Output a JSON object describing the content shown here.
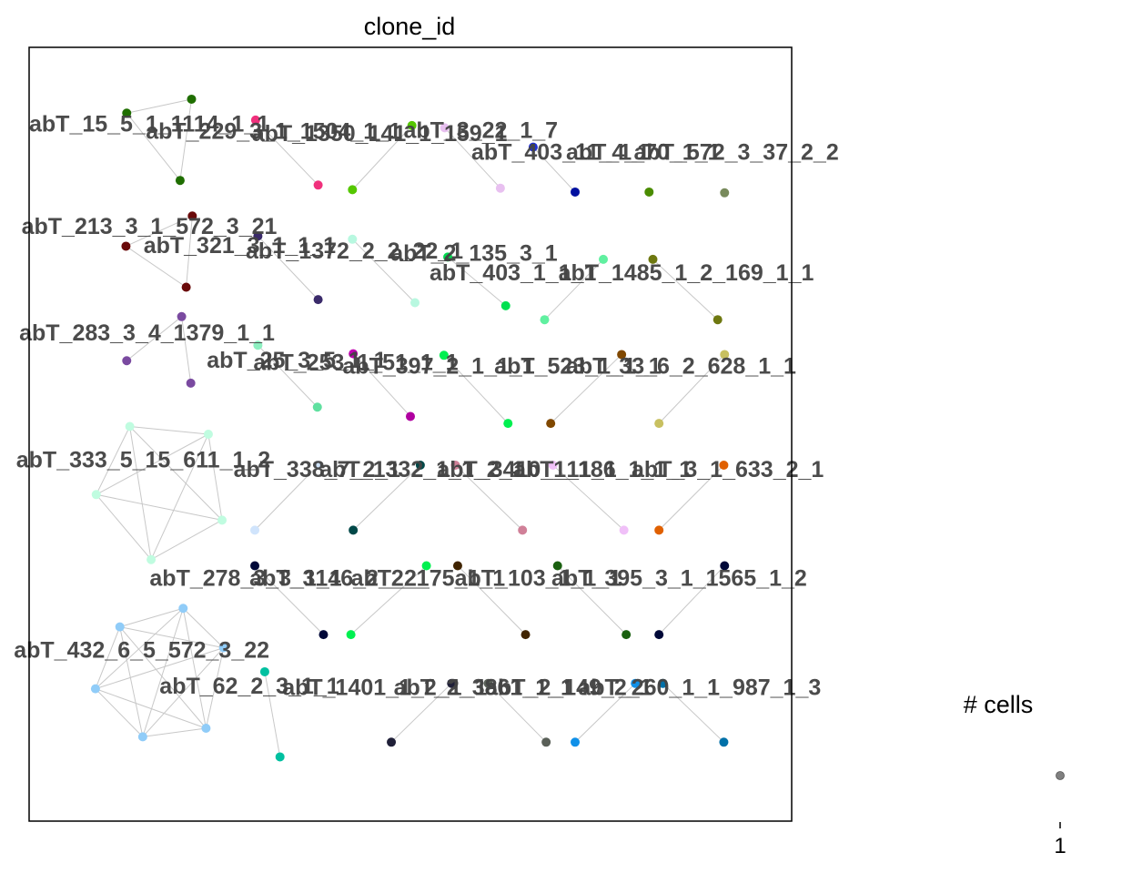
{
  "chart_data": {
    "type": "scatter",
    "title": "clone_id",
    "xlim": [
      0,
      100
    ],
    "ylim": [
      0,
      100
    ],
    "grid": false,
    "legend": {
      "title": "# cells",
      "ticks": [
        "1"
      ],
      "placement": "right"
    },
    "edge_color": "#c8c8c8",
    "clones": [
      {
        "label": "abT_15_5_1_1114_1_1",
        "lx": 0,
        "ly": 89.1,
        "nodes": [
          [
            12.8,
            91.5,
            "#1f6e00"
          ],
          [
            21.3,
            93.3,
            "#1f6e00"
          ],
          [
            19.8,
            82.8,
            "#1f6e00"
          ]
        ],
        "edges": [
          [
            0,
            1
          ],
          [
            0,
            2
          ],
          [
            1,
            2
          ]
        ]
      },
      {
        "label": "abT_229_3_1_1504_1_1",
        "lx": 15.3,
        "ly": 88.2,
        "nodes": [
          [
            29.7,
            90.6,
            "#f0307c"
          ],
          [
            37.9,
            82.2,
            "#f0307c"
          ]
        ],
        "edges": [
          [
            0,
            1
          ]
        ]
      },
      {
        "label": "abT_1350_141_1_159_1",
        "lx": 29.2,
        "ly": 87.9,
        "nodes": [
          [
            50.2,
            89.9,
            "#55c700"
          ],
          [
            42.4,
            81.6,
            "#55c700"
          ]
        ],
        "edges": [
          [
            0,
            1
          ]
        ]
      },
      {
        "label": "abT_3_22_1_7",
        "lx": 49.1,
        "ly": 88.3,
        "nodes": [
          [
            54.5,
            89.6,
            "#e8c0f0"
          ],
          [
            61.8,
            81.8,
            "#e8c0f0"
          ]
        ],
        "edges": [
          [
            0,
            1
          ]
        ]
      },
      {
        "label": "abT_403_11_4_1",
        "lx": 58.0,
        "ly": 85.5,
        "nodes": [
          [
            66.1,
            87.1,
            "#2030d0"
          ],
          [
            71.6,
            81.3,
            "#0010a0"
          ]
        ],
        "edges": [
          [
            0,
            1
          ]
        ]
      },
      {
        "label": "abT_1_70_1_1",
        "lx": 70.4,
        "ly": 85.5,
        "nodes": [
          [
            81.3,
            81.3,
            "#4a8c00"
          ]
        ],
        "edges": []
      },
      {
        "label": "abT_572_3_37_2_2",
        "lx": 79.3,
        "ly": 85.5,
        "nodes": [
          [
            91.2,
            81.2,
            "#788a5c"
          ]
        ],
        "edges": []
      },
      {
        "label": "abT_213_3_1_572_3_21",
        "lx": -1.0,
        "ly": 75.9,
        "nodes": [
          [
            12.7,
            74.3,
            "#6a0a0a"
          ],
          [
            21.4,
            78.2,
            "#6a0a0a"
          ],
          [
            20.6,
            69.0,
            "#6a0a0a"
          ]
        ],
        "edges": [
          [
            0,
            1
          ],
          [
            0,
            2
          ],
          [
            1,
            2
          ]
        ]
      },
      {
        "label": "abT_321_3_1_1_1",
        "lx": 15.0,
        "ly": 73.4,
        "nodes": [
          [
            30.0,
            75.6,
            "#3a2a6a"
          ],
          [
            37.9,
            67.4,
            "#3a2a6a"
          ]
        ],
        "edges": [
          [
            0,
            1
          ]
        ]
      },
      {
        "label": "abT_1372_2_2_22_1",
        "lx": 28.4,
        "ly": 72.7,
        "nodes": [
          [
            42.4,
            75.2,
            "#b8f8e0"
          ],
          [
            50.6,
            67.0,
            "#b8f8e0"
          ]
        ],
        "edges": [
          [
            0,
            1
          ]
        ]
      },
      {
        "label": "abT_2_135_3_1",
        "lx": 47.4,
        "ly": 72.4,
        "nodes": [
          [
            54.9,
            72.9,
            "#00dc50"
          ],
          [
            62.5,
            66.6,
            "#00e050"
          ]
        ],
        "edges": [
          [
            0,
            1
          ]
        ]
      },
      {
        "label": "abT_403_1_1_1",
        "lx": 52.5,
        "ly": 69.9,
        "nodes": [
          [
            75.3,
            72.6,
            "#60f0a0"
          ],
          [
            67.6,
            64.8,
            "#60f0a0"
          ]
        ],
        "edges": [
          [
            0,
            1
          ]
        ]
      },
      {
        "label": "abT_1485_1_2_169_1_1",
        "lx": 69.4,
        "ly": 69.9,
        "nodes": [
          [
            81.8,
            72.6,
            "#6e7810"
          ],
          [
            90.3,
            64.8,
            "#6e7810"
          ]
        ],
        "edges": [
          [
            0,
            1
          ]
        ]
      },
      {
        "label": "abT_283_3_4_1379_1_1",
        "lx": -1.3,
        "ly": 62.1,
        "nodes": [
          [
            20.0,
            65.2,
            "#7a4aa0"
          ],
          [
            12.8,
            59.5,
            "#7a4aa0"
          ],
          [
            21.2,
            56.6,
            "#7a4aa0"
          ]
        ],
        "edges": [
          [
            0,
            1
          ],
          [
            0,
            2
          ]
        ]
      },
      {
        "label": "abT_25_3_5_1_1",
        "lx": 23.3,
        "ly": 58.6,
        "nodes": [
          [
            30.0,
            61.5,
            "#8cf0c0"
          ],
          [
            37.8,
            53.5,
            "#60e0a0"
          ]
        ],
        "edges": [
          [
            0,
            1
          ]
        ]
      },
      {
        "label": "abT_253_1_51_1_1",
        "lx": 29.4,
        "ly": 58.3,
        "nodes": [
          [
            42.5,
            60.4,
            "#c000b0"
          ],
          [
            50.0,
            52.3,
            "#b000a0"
          ]
        ],
        "edges": [
          [
            0,
            1
          ]
        ]
      },
      {
        "label": "abT_397_2_1_1_1",
        "lx": 41.1,
        "ly": 57.8,
        "nodes": [
          [
            54.4,
            60.2,
            "#00f050"
          ],
          [
            62.8,
            51.4,
            "#00f050"
          ]
        ],
        "edges": [
          [
            0,
            1
          ]
        ]
      },
      {
        "label": "abT_523_1_1_1",
        "lx": 61.0,
        "ly": 57.8,
        "nodes": [
          [
            77.7,
            60.3,
            "#804800"
          ],
          [
            68.4,
            51.4,
            "#804800"
          ]
        ],
        "edges": [
          [
            0,
            1
          ]
        ]
      },
      {
        "label": "abT_33_6_2_628_1_1",
        "lx": 70.4,
        "ly": 57.8,
        "nodes": [
          [
            91.2,
            60.3,
            "#c8c060"
          ],
          [
            82.6,
            51.4,
            "#c8c060"
          ]
        ],
        "edges": [
          [
            0,
            1
          ]
        ]
      },
      {
        "label": "abT_333_5_15_611_1_2",
        "lx": -1.7,
        "ly": 45.7,
        "nodes": [
          [
            13.2,
            51.0,
            "#c0fce0"
          ],
          [
            23.5,
            50.0,
            "#c0fce0"
          ],
          [
            8.8,
            42.2,
            "#c0fce0"
          ],
          [
            25.3,
            38.9,
            "#c0fce0"
          ],
          [
            16.0,
            33.8,
            "#c0fce0"
          ]
        ],
        "edges": [
          [
            0,
            1
          ],
          [
            0,
            2
          ],
          [
            0,
            3
          ],
          [
            0,
            4
          ],
          [
            1,
            2
          ],
          [
            1,
            3
          ],
          [
            1,
            4
          ],
          [
            2,
            3
          ],
          [
            2,
            4
          ],
          [
            3,
            4
          ]
        ]
      },
      {
        "label": "abT_338_7_2_1",
        "lx": 26.8,
        "ly": 44.5,
        "nodes": [
          [
            37.9,
            46.0,
            "#d0e4fc"
          ],
          [
            29.6,
            37.6,
            "#d0e4fc"
          ]
        ],
        "edges": [
          [
            0,
            1
          ]
        ]
      },
      {
        "label": "abT_1332_1_1_2_1",
        "lx": 38.1,
        "ly": 44.5,
        "nodes": [
          [
            51.3,
            46.0,
            "#004848"
          ],
          [
            42.5,
            37.6,
            "#004848"
          ]
        ],
        "edges": [
          [
            0,
            1
          ]
        ]
      },
      {
        "label": "abT_3410_1_1_1",
        "lx": 53.5,
        "ly": 44.5,
        "nodes": [
          [
            55.9,
            46.0,
            "#d08098"
          ],
          [
            64.7,
            37.6,
            "#d08098"
          ]
        ],
        "edges": [
          [
            0,
            1
          ]
        ]
      },
      {
        "label": "abT_1186_1_1_1",
        "lx": 63.5,
        "ly": 44.5,
        "nodes": [
          [
            68.7,
            46.0,
            "#f0c0f8"
          ],
          [
            78.0,
            37.6,
            "#f0c0f8"
          ]
        ],
        "edges": [
          [
            0,
            1
          ]
        ]
      },
      {
        "label": "abT_3_1_633_2_1",
        "lx": 79.0,
        "ly": 44.5,
        "nodes": [
          [
            91.1,
            46.0,
            "#e06000"
          ],
          [
            82.6,
            37.6,
            "#e06000"
          ]
        ],
        "edges": [
          [
            0,
            1
          ]
        ]
      },
      {
        "label": "abT_278_3_3_1_1",
        "lx": 15.8,
        "ly": 30.4,
        "nodes": [
          [
            29.6,
            33.0,
            "#000838"
          ],
          [
            38.6,
            24.1,
            "#000838"
          ]
        ],
        "edges": [
          [
            0,
            1
          ]
        ]
      },
      {
        "label": "abT_3146_2_2_1",
        "lx": 28.9,
        "ly": 30.4,
        "nodes": [
          [
            52.1,
            33.0,
            "#00f050"
          ],
          [
            42.2,
            24.1,
            "#00f050"
          ]
        ],
        "edges": [
          [
            0,
            1
          ]
        ]
      },
      {
        "label": "abT_2_75_1_1",
        "lx": 42.2,
        "ly": 30.4,
        "nodes": [
          [
            56.2,
            33.0,
            "#402400"
          ],
          [
            65.1,
            24.1,
            "#402400"
          ]
        ],
        "edges": [
          [
            0,
            1
          ]
        ]
      },
      {
        "label": "abT_103_1_1_1",
        "lx": 55.8,
        "ly": 30.4,
        "nodes": [
          [
            69.3,
            33.0,
            "#1a6010"
          ],
          [
            78.3,
            24.1,
            "#1a6010"
          ]
        ],
        "edges": [
          [
            0,
            1
          ]
        ]
      },
      {
        "label": "abT_395_3_1_1565_1_2",
        "lx": 68.5,
        "ly": 30.4,
        "nodes": [
          [
            91.2,
            33.0,
            "#000838"
          ],
          [
            82.6,
            24.1,
            "#000838"
          ]
        ],
        "edges": [
          [
            0,
            1
          ]
        ]
      },
      {
        "label": "abT_432_6_5_572_3_22",
        "lx": -2.0,
        "ly": 21.1,
        "nodes": [
          [
            20.2,
            27.5,
            "#90ccf8"
          ],
          [
            11.9,
            25.1,
            "#90ccf8"
          ],
          [
            25.5,
            22.4,
            "#90ccf8"
          ],
          [
            8.7,
            17.1,
            "#90ccf8"
          ],
          [
            23.2,
            12.0,
            "#90ccf8"
          ],
          [
            14.9,
            10.9,
            "#90ccf8"
          ]
        ],
        "edges": [
          [
            0,
            1
          ],
          [
            0,
            2
          ],
          [
            0,
            3
          ],
          [
            0,
            4
          ],
          [
            0,
            5
          ],
          [
            1,
            2
          ],
          [
            1,
            3
          ],
          [
            1,
            4
          ],
          [
            1,
            5
          ],
          [
            2,
            3
          ],
          [
            2,
            4
          ],
          [
            2,
            5
          ],
          [
            3,
            4
          ],
          [
            3,
            5
          ],
          [
            4,
            5
          ]
        ]
      },
      {
        "label": "abT_62_2_3_1_1",
        "lx": 17.1,
        "ly": 16.5,
        "nodes": [
          [
            30.9,
            19.3,
            "#00c0a0"
          ],
          [
            32.9,
            8.3,
            "#00c0a0"
          ]
        ],
        "edges": [
          [
            0,
            1
          ]
        ]
      },
      {
        "label": "abT_1401_1_2_1_1",
        "lx": 33.2,
        "ly": 16.3,
        "nodes": [
          [
            55.4,
            17.8,
            "#202038"
          ],
          [
            47.5,
            10.2,
            "#202038"
          ]
        ],
        "edges": [
          [
            0,
            1
          ]
        ]
      },
      {
        "label": "abT_2_3861_1_1",
        "lx": 47.8,
        "ly": 16.3,
        "nodes": [
          [
            60.2,
            17.8,
            "#5a6058"
          ],
          [
            67.8,
            10.2,
            "#5a6058"
          ]
        ],
        "edges": [
          [
            0,
            1
          ]
        ]
      },
      {
        "label": "abT_2_149_2_1",
        "lx": 59.8,
        "ly": 16.3,
        "nodes": [
          [
            79.5,
            17.8,
            "#1090e8"
          ],
          [
            71.6,
            10.2,
            "#1090e8"
          ]
        ],
        "edges": [
          [
            0,
            1
          ]
        ]
      },
      {
        "label": "abT_260_1_1_987_1_3",
        "lx": 72.0,
        "ly": 16.3,
        "nodes": [
          [
            83.1,
            17.8,
            "#0070a8"
          ],
          [
            91.1,
            10.2,
            "#0070a8"
          ]
        ],
        "edges": [
          [
            0,
            1
          ]
        ]
      }
    ]
  }
}
